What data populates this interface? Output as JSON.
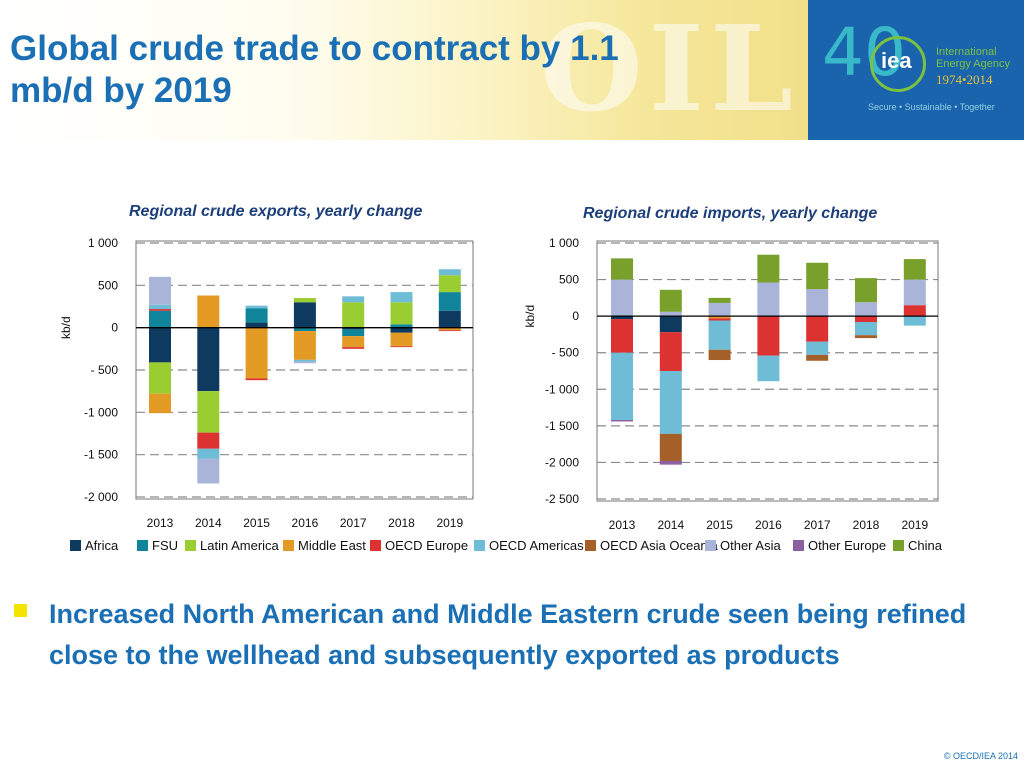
{
  "title": "Global crude trade to contract by 1.1 mb/d by 2019",
  "banner_word": "OIL",
  "logo": {
    "number": "40",
    "mark": "iea",
    "line1": "International",
    "line2": "Energy Agency",
    "years": "1974•2014",
    "tagline": "Secure • Sustainable • Together"
  },
  "legend": [
    {
      "name": "Africa",
      "color": "#0d3a5e"
    },
    {
      "name": "FSU",
      "color": "#10849a"
    },
    {
      "name": "Latin America",
      "color": "#9acd32"
    },
    {
      "name": "Middle East",
      "color": "#e39b25"
    },
    {
      "name": "OECD Europe",
      "color": "#dc3232"
    },
    {
      "name": "OECD Americas",
      "color": "#6fbcd6"
    },
    {
      "name": "OECD Asia Oceania",
      "color": "#a5602a"
    },
    {
      "name": "Other Asia",
      "color": "#a9b4d8"
    },
    {
      "name": "Other Europe",
      "color": "#8c5fa0"
    },
    {
      "name": "China",
      "color": "#7aa02c"
    }
  ],
  "chart_data": [
    {
      "type": "bar",
      "stacked": true,
      "title": "Regional crude exports, yearly change",
      "ylabel": "kb/d",
      "ylim": [
        -2000,
        1000
      ],
      "yticks": [
        1000,
        500,
        0,
        -500,
        -1000,
        -1500,
        -2000
      ],
      "ytick_labels": [
        "1 000",
        "500",
        "0",
        "- 500",
        "-1 000",
        "-1 500",
        "-2 000"
      ],
      "grid": "dashed",
      "categories": [
        "2013",
        "2014",
        "2015",
        "2016",
        "2017",
        "2018",
        "2019"
      ],
      "series": [
        {
          "name": "Africa",
          "values": [
            -410,
            -750,
            60,
            300,
            -20,
            -60,
            200
          ]
        },
        {
          "name": "FSU",
          "values": [
            200,
            0,
            170,
            -40,
            -80,
            40,
            220
          ]
        },
        {
          "name": "Latin America",
          "values": [
            -370,
            -490,
            0,
            50,
            300,
            260,
            200
          ]
        },
        {
          "name": "Middle East",
          "values": [
            -230,
            380,
            -600,
            -340,
            -130,
            -160,
            -30
          ]
        },
        {
          "name": "OECD Europe",
          "values": [
            20,
            -190,
            -20,
            0,
            -20,
            -10,
            -10
          ]
        },
        {
          "name": "OECD Americas",
          "values": [
            50,
            -120,
            30,
            -20,
            70,
            120,
            70
          ]
        },
        {
          "name": "OECD Asia Oceania",
          "values": [
            0,
            0,
            0,
            0,
            0,
            0,
            0
          ]
        },
        {
          "name": "Other Asia",
          "values": [
            330,
            -290,
            0,
            -20,
            0,
            0,
            0
          ]
        },
        {
          "name": "Other Europe",
          "values": [
            0,
            0,
            0,
            0,
            0,
            0,
            0
          ]
        },
        {
          "name": "China",
          "values": [
            0,
            0,
            0,
            0,
            0,
            0,
            0
          ]
        }
      ]
    },
    {
      "type": "bar",
      "stacked": true,
      "title": "Regional crude imports, yearly change",
      "ylabel": "kb/d",
      "ylim": [
        -2500,
        1000
      ],
      "yticks": [
        1000,
        500,
        0,
        -500,
        -1000,
        -1500,
        -2000,
        -2500
      ],
      "ytick_labels": [
        "1 000",
        "500",
        "0",
        "- 500",
        "-1 000",
        "-1 500",
        "-2 000",
        "-2 500"
      ],
      "grid": "dashed",
      "categories": [
        "2013",
        "2014",
        "2015",
        "2016",
        "2017",
        "2018",
        "2019"
      ],
      "series": [
        {
          "name": "Africa",
          "values": [
            -40,
            -220,
            0,
            0,
            0,
            0,
            0
          ]
        },
        {
          "name": "FSU",
          "values": [
            0,
            0,
            0,
            0,
            0,
            0,
            0
          ]
        },
        {
          "name": "Latin America",
          "values": [
            0,
            0,
            0,
            0,
            0,
            0,
            0
          ]
        },
        {
          "name": "Middle East",
          "values": [
            0,
            0,
            -30,
            0,
            0,
            0,
            0
          ]
        },
        {
          "name": "OECD Europe",
          "values": [
            -460,
            -530,
            -30,
            -540,
            -350,
            -80,
            150
          ]
        },
        {
          "name": "OECD Americas",
          "values": [
            -920,
            -860,
            -400,
            -350,
            -180,
            -180,
            -130
          ]
        },
        {
          "name": "OECD Asia Oceania",
          "values": [
            0,
            -370,
            -140,
            0,
            -80,
            -40,
            0
          ]
        },
        {
          "name": "Other Asia",
          "values": [
            500,
            60,
            180,
            460,
            370,
            190,
            350
          ]
        },
        {
          "name": "Other Europe",
          "values": [
            -20,
            -50,
            0,
            0,
            0,
            0,
            0
          ]
        },
        {
          "name": "China",
          "values": [
            290,
            300,
            70,
            380,
            360,
            330,
            280
          ]
        }
      ]
    }
  ],
  "bullet": "Increased North American and Middle Eastern crude seen being refined close to the wellhead and subsequently exported as products",
  "copyright": "© OECD/IEA 2014"
}
